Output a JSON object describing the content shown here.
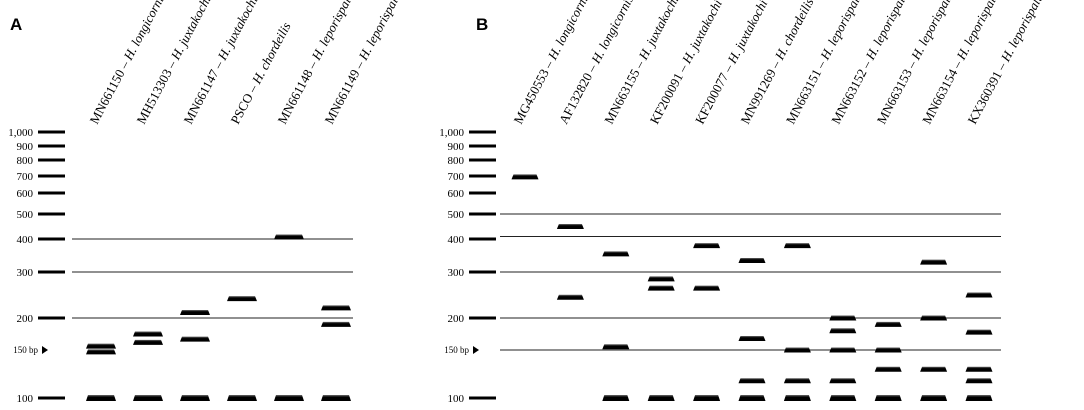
{
  "panels": [
    {
      "letter": "A",
      "ladder": [
        "1,000",
        "900",
        "800",
        "700",
        "600",
        "500",
        "400",
        "300",
        "200",
        "150 bp",
        "100"
      ],
      "ladder_values": [
        1000,
        900,
        800,
        700,
        600,
        500,
        400,
        300,
        200,
        150,
        100
      ],
      "guide_lines": [
        400,
        300,
        200
      ],
      "lanes": [
        {
          "accession": "MN661150",
          "species": "H. longicornis",
          "bands": [
            100,
            148,
            156
          ]
        },
        {
          "accession": "MH513303",
          "species": "H. juxtakochi",
          "bands": [
            100,
            162,
            175
          ]
        },
        {
          "accession": "MN661147",
          "species": "H. juxtakochi",
          "bands": [
            100,
            167,
            212
          ]
        },
        {
          "accession": "PSCO",
          "species": "H. chordeilis",
          "bands": [
            100,
            242
          ]
        },
        {
          "accession": "MN661148",
          "species": "H. leporispalustris",
          "bands": [
            100,
            408
          ]
        },
        {
          "accession": "MN661149",
          "species": "H. leporispalustris",
          "bands": [
            100,
            190,
            222
          ]
        }
      ]
    },
    {
      "letter": "B",
      "ladder": [
        "1,000",
        "900",
        "800",
        "700",
        "600",
        "500",
        "400",
        "300",
        "200",
        "150 bp",
        "100"
      ],
      "ladder_values": [
        1000,
        900,
        800,
        700,
        600,
        500,
        400,
        300,
        200,
        150,
        100
      ],
      "guide_lines": [
        500,
        410,
        300,
        200,
        150
      ],
      "lanes": [
        {
          "accession": "MG450553",
          "species": "H. longicornis",
          "bands": [
            695
          ]
        },
        {
          "accession": "AF132820",
          "species": "H. longicornis",
          "bands": [
            245,
            450
          ]
        },
        {
          "accession": "MN663155",
          "species": "H. juxtakochi",
          "bands": [
            100,
            155,
            355
          ]
        },
        {
          "accession": "KF200091",
          "species": "H. juxtakochi",
          "bands": [
            100,
            265,
            285
          ]
        },
        {
          "accession": "KF200077",
          "species": "H. juxtakochi",
          "bands": [
            100,
            265,
            380
          ]
        },
        {
          "accession": "MN991269",
          "species": "H. chordeilis",
          "bands": [
            100,
            118,
            168,
            335
          ]
        },
        {
          "accession": "MN663151",
          "species": "H. leporispalustris",
          "bands": [
            100,
            118,
            150,
            380
          ]
        },
        {
          "accession": "MN663152",
          "species": "H. leporispalustris",
          "bands": [
            100,
            118,
            150,
            180,
            200
          ]
        },
        {
          "accession": "MN663153",
          "species": "H. leporispalustris",
          "bands": [
            100,
            130,
            150,
            190
          ]
        },
        {
          "accession": "MN663154",
          "species": "H. leporispalustris",
          "bands": [
            100,
            130,
            200,
            330
          ]
        },
        {
          "accession": "KX360391",
          "species": "H. leporispalustris",
          "bands": [
            100,
            118,
            130,
            178,
            250
          ]
        }
      ]
    }
  ]
}
